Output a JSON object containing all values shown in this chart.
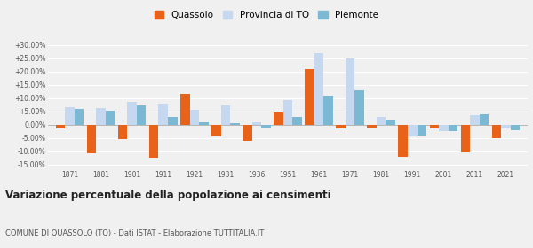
{
  "years": [
    1871,
    1881,
    1901,
    1911,
    1921,
    1931,
    1936,
    1951,
    1961,
    1971,
    1981,
    1991,
    2001,
    2011,
    2021
  ],
  "quassolo": [
    -1.5,
    -10.8,
    -5.5,
    -12.5,
    11.5,
    -4.5,
    -6.0,
    4.5,
    21.0,
    -1.5,
    -1.0,
    -12.0,
    -1.5,
    -10.5,
    -5.0
  ],
  "provincia_to": [
    6.5,
    6.3,
    8.6,
    7.8,
    5.5,
    7.2,
    1.1,
    9.2,
    27.0,
    25.0,
    2.8,
    -4.5,
    -2.5,
    3.5,
    -1.5
  ],
  "piemonte": [
    6.0,
    5.3,
    7.2,
    2.8,
    0.8,
    0.5,
    -1.0,
    2.8,
    11.0,
    13.0,
    1.5,
    -4.0,
    -2.5,
    3.8,
    -2.0
  ],
  "color_quassolo": "#e8621a",
  "color_provincia": "#c5d8f0",
  "color_piemonte": "#7ab8d4",
  "title": "Variazione percentuale della popolazione ai censimenti",
  "subtitle": "COMUNE DI QUASSOLO (TO) - Dati ISTAT - Elaborazione TUTTITALIA.IT",
  "ylim": [
    -16.5,
    32
  ],
  "yticks": [
    -15,
    -10,
    -5,
    0,
    5,
    10,
    15,
    20,
    25,
    30
  ],
  "bar_width": 0.3,
  "background_color": "#f0f0f0"
}
